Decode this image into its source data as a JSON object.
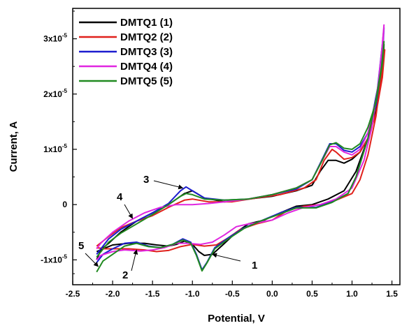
{
  "chart_data": {
    "type": "line",
    "title": "",
    "xlabel": "Potential, V",
    "ylabel": "Current, A",
    "xlim": [
      -2.5,
      1.6
    ],
    "ylim": [
      -1.45e-05,
      3.55e-05
    ],
    "x_ticks": [
      {
        "value": -2.5,
        "label": "-2.5"
      },
      {
        "value": -2.0,
        "label": "-2.0"
      },
      {
        "value": -1.5,
        "label": "-1.5"
      },
      {
        "value": -1.0,
        "label": "-1.0"
      },
      {
        "value": -0.5,
        "label": "-0.5"
      },
      {
        "value": 0.0,
        "label": "0.0"
      },
      {
        "value": 0.5,
        "label": "0.5"
      },
      {
        "value": 1.0,
        "label": "1.0"
      },
      {
        "value": 1.5,
        "label": "1.5"
      }
    ],
    "y_ticks": [
      {
        "value": -1e-05,
        "base": "-1x10",
        "exp": "-5"
      },
      {
        "value": 0,
        "base": "0",
        "exp": ""
      },
      {
        "value": 1e-05,
        "base": "1x10",
        "exp": "-5"
      },
      {
        "value": 2e-05,
        "base": "2x10",
        "exp": "-5"
      },
      {
        "value": 3e-05,
        "base": "3x10",
        "exp": "-5"
      }
    ],
    "grid": false,
    "legend_position": "top-left",
    "series": [
      {
        "name": "DMTQ1 (1)",
        "color": "#000000",
        "points": [
          [
            -2.2,
            -1e-05
          ],
          [
            -2.15,
            -8.2e-06
          ],
          [
            -2.0,
            -7.3e-06
          ],
          [
            -1.8,
            -7e-06
          ],
          [
            -1.6,
            -7e-06
          ],
          [
            -1.45,
            -7.3e-06
          ],
          [
            -1.3,
            -7.5e-06
          ],
          [
            -1.2,
            -7.2e-06
          ],
          [
            -1.1,
            -6.6e-06
          ],
          [
            -1.0,
            -7.2e-06
          ],
          [
            -0.92,
            -8.5e-06
          ],
          [
            -0.85,
            -9.2e-06
          ],
          [
            -0.75,
            -9e-06
          ],
          [
            -0.62,
            -7.3e-06
          ],
          [
            -0.45,
            -5e-06
          ],
          [
            -0.3,
            -3.5e-06
          ],
          [
            -0.1,
            -2.8e-06
          ],
          [
            0.1,
            -1.5e-06
          ],
          [
            0.3,
            -3e-07
          ],
          [
            0.5,
            0.0
          ],
          [
            0.7,
            1e-06
          ],
          [
            0.9,
            2.5e-06
          ],
          [
            1.05,
            6e-06
          ],
          [
            1.2,
            1.2e-05
          ],
          [
            1.3,
            1.9e-05
          ],
          [
            1.38,
            2.6e-05
          ],
          [
            1.4,
            2.9e-05
          ],
          [
            1.38,
            2.35e-05
          ],
          [
            1.3,
            1.7e-05
          ],
          [
            1.2,
            1.2e-05
          ],
          [
            1.1,
            9.5e-06
          ],
          [
            1.0,
            8.2e-06
          ],
          [
            0.9,
            7.5e-06
          ],
          [
            0.8,
            8e-06
          ],
          [
            0.7,
            8e-06
          ],
          [
            0.6,
            6e-06
          ],
          [
            0.5,
            3.5e-06
          ],
          [
            0.3,
            2.5e-06
          ],
          [
            0.0,
            1.5e-06
          ],
          [
            -0.3,
            1e-06
          ],
          [
            -0.6,
            5e-07
          ],
          [
            -0.85,
            1.2e-06
          ],
          [
            -1.0,
            2.5e-06
          ],
          [
            -1.1,
            2e-06
          ],
          [
            -1.3,
            0.0
          ],
          [
            -1.5,
            -1.5e-06
          ],
          [
            -1.7,
            -3e-06
          ],
          [
            -1.9,
            -5e-06
          ],
          [
            -2.05,
            -7e-06
          ],
          [
            -2.15,
            -8.2e-06
          ],
          [
            -2.2,
            -8.5e-06
          ]
        ]
      },
      {
        "name": "DMTQ2 (2)",
        "color": "#e0201b",
        "points": [
          [
            -2.2,
            -7.8e-06
          ],
          [
            -2.1,
            -8e-06
          ],
          [
            -1.95,
            -8e-06
          ],
          [
            -1.8,
            -8e-06
          ],
          [
            -1.6,
            -8.2e-06
          ],
          [
            -1.45,
            -8.5e-06
          ],
          [
            -1.3,
            -8.3e-06
          ],
          [
            -1.15,
            -7.6e-06
          ],
          [
            -1.0,
            -7.2e-06
          ],
          [
            -0.85,
            -7.5e-06
          ],
          [
            -0.7,
            -7.3e-06
          ],
          [
            -0.55,
            -6e-06
          ],
          [
            -0.4,
            -4.5e-06
          ],
          [
            -0.2,
            -3.5e-06
          ],
          [
            0.0,
            -2.8e-06
          ],
          [
            0.2,
            -1e-06
          ],
          [
            0.4,
            -3e-07
          ],
          [
            0.6,
            0.0
          ],
          [
            0.8,
            8e-07
          ],
          [
            1.0,
            2e-06
          ],
          [
            1.1,
            4.5e-06
          ],
          [
            1.2,
            9e-06
          ],
          [
            1.3,
            1.6e-05
          ],
          [
            1.38,
            2.5e-05
          ],
          [
            1.41,
            2.8e-05
          ],
          [
            1.38,
            2.3e-05
          ],
          [
            1.3,
            1.65e-05
          ],
          [
            1.2,
            1.2e-05
          ],
          [
            1.1,
            9.5e-06
          ],
          [
            1.0,
            8.5e-06
          ],
          [
            0.9,
            8.2e-06
          ],
          [
            0.8,
            9.5e-06
          ],
          [
            0.75,
            1e-05
          ],
          [
            0.65,
            8e-06
          ],
          [
            0.55,
            4.5e-06
          ],
          [
            0.4,
            3e-06
          ],
          [
            0.1,
            1.8e-06
          ],
          [
            -0.2,
            1.2e-06
          ],
          [
            -0.5,
            5e-07
          ],
          [
            -0.8,
            5e-07
          ],
          [
            -1.0,
            1e-06
          ],
          [
            -1.1,
            8e-07
          ],
          [
            -1.3,
            -5e-07
          ],
          [
            -1.5,
            -2e-06
          ],
          [
            -1.7,
            -3e-06
          ],
          [
            -1.9,
            -4.2e-06
          ],
          [
            -2.05,
            -5.8e-06
          ],
          [
            -2.2,
            -7.5e-06
          ]
        ]
      },
      {
        "name": "DMTQ3 (3)",
        "color": "#1c1ccf",
        "points": [
          [
            -2.2,
            -1.05e-05
          ],
          [
            -2.12,
            -9e-06
          ],
          [
            -2.0,
            -8e-06
          ],
          [
            -1.85,
            -7e-06
          ],
          [
            -1.7,
            -6.8e-06
          ],
          [
            -1.55,
            -7.5e-06
          ],
          [
            -1.4,
            -7.8e-06
          ],
          [
            -1.25,
            -7.2e-06
          ],
          [
            -1.12,
            -6.2e-06
          ],
          [
            -1.02,
            -6.8e-06
          ],
          [
            -0.95,
            -9e-06
          ],
          [
            -0.88,
            -1.18e-05
          ],
          [
            -0.82,
            -1.05e-05
          ],
          [
            -0.72,
            -7.8e-06
          ],
          [
            -0.55,
            -6e-06
          ],
          [
            -0.35,
            -4.2e-06
          ],
          [
            -0.15,
            -3e-06
          ],
          [
            0.1,
            -1.5e-06
          ],
          [
            0.3,
            -5e-07
          ],
          [
            0.55,
            -5e-07
          ],
          [
            0.75,
            5e-07
          ],
          [
            0.95,
            2e-06
          ],
          [
            1.05,
            5e-06
          ],
          [
            1.2,
            1.2e-05
          ],
          [
            1.32,
            2.1e-05
          ],
          [
            1.38,
            2.9e-05
          ],
          [
            1.4,
            3.2e-05
          ],
          [
            1.38,
            2.6e-05
          ],
          [
            1.3,
            1.8e-05
          ],
          [
            1.2,
            1.3e-05
          ],
          [
            1.1,
            1.05e-05
          ],
          [
            1.0,
            9.5e-06
          ],
          [
            0.9,
            9.8e-06
          ],
          [
            0.8,
            1.1e-05
          ],
          [
            0.72,
            1.1e-05
          ],
          [
            0.62,
            8e-06
          ],
          [
            0.5,
            4.5e-06
          ],
          [
            0.3,
            2.8e-06
          ],
          [
            0.0,
            1.8e-06
          ],
          [
            -0.3,
            1e-06
          ],
          [
            -0.6,
            8e-07
          ],
          [
            -0.85,
            1.2e-06
          ],
          [
            -1.0,
            2.5e-06
          ],
          [
            -1.08,
            3.2e-06
          ],
          [
            -1.15,
            2.5e-06
          ],
          [
            -1.3,
            2e-07
          ],
          [
            -1.5,
            -1.5e-06
          ],
          [
            -1.7,
            -3e-06
          ],
          [
            -1.9,
            -4.5e-06
          ],
          [
            -2.05,
            -6.2e-06
          ],
          [
            -2.2,
            -9e-06
          ]
        ]
      },
      {
        "name": "DMTQ4 (4)",
        "color": "#e026e0",
        "points": [
          [
            -2.2,
            -1e-05
          ],
          [
            -2.15,
            -9.2e-06
          ],
          [
            -2.0,
            -8.5e-06
          ],
          [
            -1.85,
            -8.2e-06
          ],
          [
            -1.65,
            -8.4e-06
          ],
          [
            -1.5,
            -8.2e-06
          ],
          [
            -1.35,
            -7.8e-06
          ],
          [
            -1.2,
            -7e-06
          ],
          [
            -1.05,
            -7e-06
          ],
          [
            -0.9,
            -7.2e-06
          ],
          [
            -0.75,
            -6.8e-06
          ],
          [
            -0.6,
            -5.5e-06
          ],
          [
            -0.45,
            -4e-06
          ],
          [
            -0.3,
            -3.5e-06
          ],
          [
            -0.15,
            -3.2e-06
          ],
          [
            0.0,
            -2.8e-06
          ],
          [
            0.2,
            -1.5e-06
          ],
          [
            0.4,
            -5e-07
          ],
          [
            0.6,
            0.0
          ],
          [
            0.8,
            1e-06
          ],
          [
            1.0,
            3e-06
          ],
          [
            1.15,
            8e-06
          ],
          [
            1.25,
            1.4e-05
          ],
          [
            1.33,
            2.2e-05
          ],
          [
            1.38,
            2.9e-05
          ],
          [
            1.4,
            3.25e-05
          ],
          [
            1.38,
            2.7e-05
          ],
          [
            1.3,
            1.9e-05
          ],
          [
            1.2,
            1.3e-05
          ],
          [
            1.1,
            1e-05
          ],
          [
            1.0,
            9e-06
          ],
          [
            0.9,
            9.5e-06
          ],
          [
            0.8,
            1.05e-05
          ],
          [
            0.72,
            1.05e-05
          ],
          [
            0.62,
            7.8e-06
          ],
          [
            0.5,
            4.5e-06
          ],
          [
            0.3,
            3e-06
          ],
          [
            0.0,
            1.8e-06
          ],
          [
            -0.3,
            1e-06
          ],
          [
            -0.6,
            5e-07
          ],
          [
            -0.8,
            2e-07
          ],
          [
            -1.0,
            0.0
          ],
          [
            -1.2,
            0.0
          ],
          [
            -1.4,
            -5e-07
          ],
          [
            -1.6,
            -1.5e-06
          ],
          [
            -1.8,
            -3e-06
          ],
          [
            -2.0,
            -5e-06
          ],
          [
            -2.15,
            -7e-06
          ],
          [
            -2.2,
            -8e-06
          ]
        ]
      },
      {
        "name": "DMTQ5 (5)",
        "color": "#218a21",
        "points": [
          [
            -2.2,
            -1.22e-05
          ],
          [
            -2.12,
            -1.02e-05
          ],
          [
            -2.0,
            -9e-06
          ],
          [
            -1.85,
            -7.5e-06
          ],
          [
            -1.7,
            -7e-06
          ],
          [
            -1.55,
            -7.6e-06
          ],
          [
            -1.4,
            -7.8e-06
          ],
          [
            -1.25,
            -7.2e-06
          ],
          [
            -1.12,
            -6.4e-06
          ],
          [
            -1.02,
            -7e-06
          ],
          [
            -0.95,
            -9.2e-06
          ],
          [
            -0.88,
            -1.2e-05
          ],
          [
            -0.82,
            -1.06e-05
          ],
          [
            -0.72,
            -8e-06
          ],
          [
            -0.55,
            -6.2e-06
          ],
          [
            -0.35,
            -4.3e-06
          ],
          [
            -0.15,
            -3e-06
          ],
          [
            0.1,
            -1.7e-06
          ],
          [
            0.3,
            -6e-07
          ],
          [
            0.55,
            -6e-07
          ],
          [
            0.75,
            4e-07
          ],
          [
            0.95,
            2e-06
          ],
          [
            1.05,
            5e-06
          ],
          [
            1.2,
            1.2e-05
          ],
          [
            1.3,
            1.9e-05
          ],
          [
            1.37,
            2.5e-05
          ],
          [
            1.4,
            2.95e-05
          ],
          [
            1.38,
            2.55e-05
          ],
          [
            1.3,
            1.85e-05
          ],
          [
            1.2,
            1.4e-05
          ],
          [
            1.1,
            1.1e-05
          ],
          [
            1.0,
            1e-05
          ],
          [
            0.9,
            1.02e-05
          ],
          [
            0.8,
            1.12e-05
          ],
          [
            0.72,
            1.08e-05
          ],
          [
            0.62,
            7.8e-06
          ],
          [
            0.5,
            4.5e-06
          ],
          [
            0.3,
            3e-06
          ],
          [
            0.0,
            1.8e-06
          ],
          [
            -0.3,
            1e-06
          ],
          [
            -0.6,
            8e-07
          ],
          [
            -0.85,
            1e-06
          ],
          [
            -1.0,
            1.8e-06
          ],
          [
            -1.08,
            2e-06
          ],
          [
            -1.15,
            1.5e-06
          ],
          [
            -1.3,
            0.0
          ],
          [
            -1.5,
            -1.8e-06
          ],
          [
            -1.7,
            -3.5e-06
          ],
          [
            -1.9,
            -5.2e-06
          ],
          [
            -2.05,
            -6.8e-06
          ],
          [
            -2.2,
            -9.5e-06
          ]
        ]
      }
    ],
    "annotations": [
      {
        "label": "1",
        "arrow_to": [
          -0.75,
          -9e-06
        ]
      },
      {
        "label": "2",
        "arrow_to": [
          -1.7,
          -8.2e-06
        ]
      },
      {
        "label": "3",
        "arrow_to": [
          -1.12,
          3e-06
        ]
      },
      {
        "label": "4",
        "arrow_to": [
          -1.75,
          -2.5e-06
        ]
      },
      {
        "label": "5",
        "arrow_to": [
          -2.18,
          -1.12e-05
        ]
      }
    ]
  }
}
